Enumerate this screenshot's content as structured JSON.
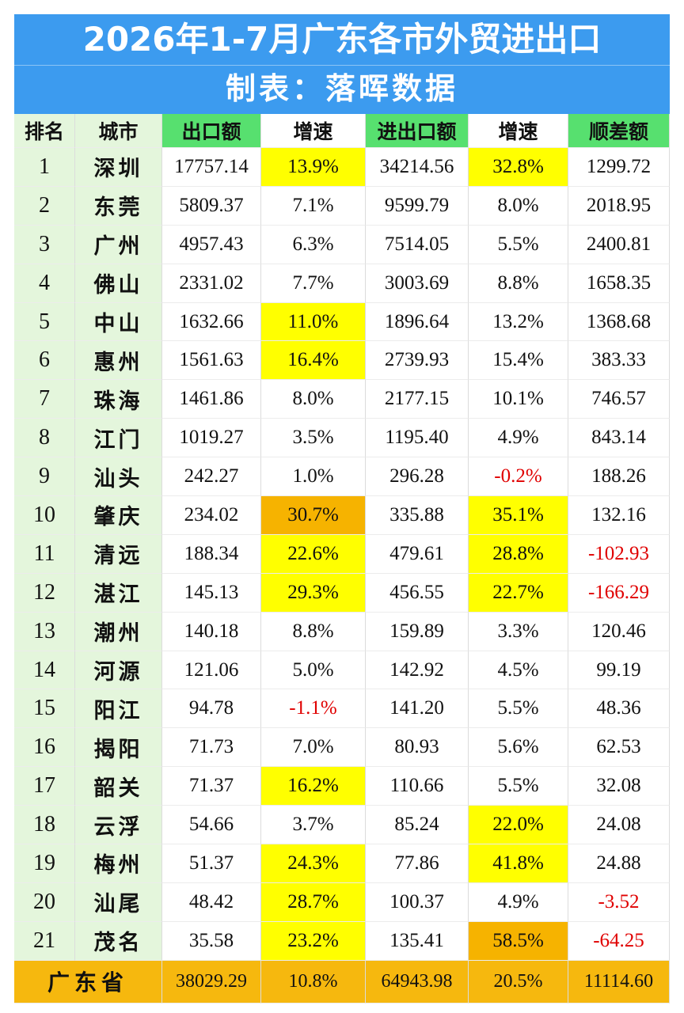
{
  "header": {
    "title": "2026年1-7月广东各市外贸进出口",
    "subtitle": "制表：落晖数据"
  },
  "table": {
    "columns": [
      "排名",
      "城市",
      "出口额",
      "增速",
      "进出口额",
      "增速",
      "顺差额"
    ],
    "rows": [
      [
        "1",
        "深圳",
        "17757.14",
        "13.9%",
        "34214.56",
        "32.8%",
        "1299.72"
      ],
      [
        "2",
        "东莞",
        "5809.37",
        "7.1%",
        "9599.79",
        "8.0%",
        "2018.95"
      ],
      [
        "3",
        "广州",
        "4957.43",
        "6.3%",
        "7514.05",
        "5.5%",
        "2400.81"
      ],
      [
        "4",
        "佛山",
        "2331.02",
        "7.7%",
        "3003.69",
        "8.8%",
        "1658.35"
      ],
      [
        "5",
        "中山",
        "1632.66",
        "11.0%",
        "1896.64",
        "13.2%",
        "1368.68"
      ],
      [
        "6",
        "惠州",
        "1561.63",
        "16.4%",
        "2739.93",
        "15.4%",
        "383.33"
      ],
      [
        "7",
        "珠海",
        "1461.86",
        "8.0%",
        "2177.15",
        "10.1%",
        "746.57"
      ],
      [
        "8",
        "江门",
        "1019.27",
        "3.5%",
        "1195.40",
        "4.9%",
        "843.14"
      ],
      [
        "9",
        "汕头",
        "242.27",
        "1.0%",
        "296.28",
        "-0.2%",
        "188.26"
      ],
      [
        "10",
        "肇庆",
        "234.02",
        "30.7%",
        "335.88",
        "35.1%",
        "132.16"
      ],
      [
        "11",
        "清远",
        "188.34",
        "22.6%",
        "479.61",
        "28.8%",
        "-102.93"
      ],
      [
        "12",
        "湛江",
        "145.13",
        "29.3%",
        "456.55",
        "22.7%",
        "-166.29"
      ],
      [
        "13",
        "潮州",
        "140.18",
        "8.8%",
        "159.89",
        "3.3%",
        "120.46"
      ],
      [
        "14",
        "河源",
        "121.06",
        "5.0%",
        "142.92",
        "4.5%",
        "99.19"
      ],
      [
        "15",
        "阳江",
        "94.78",
        "-1.1%",
        "141.20",
        "5.5%",
        "48.36"
      ],
      [
        "16",
        "揭阳",
        "71.73",
        "7.0%",
        "80.93",
        "5.6%",
        "62.53"
      ],
      [
        "17",
        "韶关",
        "71.37",
        "16.2%",
        "110.66",
        "5.5%",
        "32.08"
      ],
      [
        "18",
        "云浮",
        "54.66",
        "3.7%",
        "85.24",
        "22.0%",
        "24.08"
      ],
      [
        "19",
        "梅州",
        "51.37",
        "24.3%",
        "77.86",
        "41.8%",
        "24.88"
      ],
      [
        "20",
        "汕尾",
        "48.42",
        "28.7%",
        "100.37",
        "4.9%",
        "-3.52"
      ],
      [
        "21",
        "茂名",
        "35.58",
        "23.2%",
        "135.41",
        "58.5%",
        "-64.25"
      ]
    ],
    "total": [
      "广东省",
      "38029.29",
      "10.8%",
      "64943.98",
      "20.5%",
      "11114.60"
    ]
  }
}
